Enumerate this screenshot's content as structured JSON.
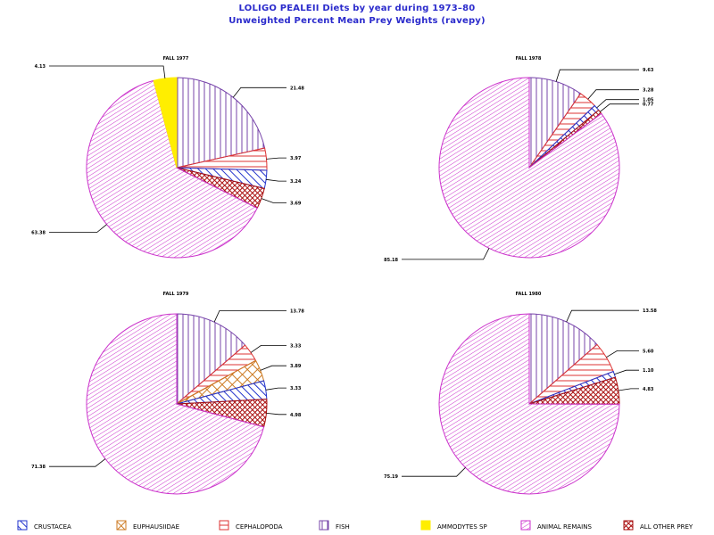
{
  "title": "LOLIGO PEALEII Diets by year during 1973–80",
  "subtitle": "Unweighted Percent Mean Prey Weights (ravepy)",
  "colors": {
    "title": "#2b2bcc",
    "crustacea": "#2233cc",
    "euphausiidae": "#cc7a22",
    "cephalopoda": "#dd3333",
    "fish": "#7744aa",
    "ammodytes": "#ffee00",
    "animal_remains": "#cc33cc",
    "other_prey": "#aa1111"
  },
  "legend": [
    {
      "key": "crustacea",
      "label": "CRUSTACEA",
      "pattern": "crustacea-hatch"
    },
    {
      "key": "euphausiidae",
      "label": "EUPHAUSIIDAE",
      "pattern": "euphausiidae-hatch"
    },
    {
      "key": "cephalopoda",
      "label": "CEPHALOPODA",
      "pattern": "cephalopoda-hatch"
    },
    {
      "key": "fish",
      "label": "FISH",
      "pattern": "fish-hatch"
    },
    {
      "key": "ammodytes",
      "label": "AMMODYTES SP",
      "pattern": "ammodytes-fill"
    },
    {
      "key": "animal_remains",
      "label": "ANIMAL REMAINS",
      "pattern": "animal-remains-hatch"
    },
    {
      "key": "other_prey",
      "label": "ALL OTHER PREY",
      "pattern": "other-prey-hatch"
    }
  ],
  "chart_data": [
    {
      "type": "pie",
      "title": "FALL 1977",
      "slices": [
        {
          "category": "fish",
          "value": 21.48,
          "label": "21.48"
        },
        {
          "category": "cephalopoda",
          "value": 3.97,
          "label": "3.97"
        },
        {
          "category": "crustacea",
          "value": 3.24,
          "label": "3.24"
        },
        {
          "category": "other_prey",
          "value": 3.69,
          "label": "3.69"
        },
        {
          "category": "animal_remains",
          "value": 63.38,
          "label": "63.38"
        },
        {
          "category": "ammodytes",
          "value": 4.13,
          "label": "4.13"
        }
      ]
    },
    {
      "type": "pie",
      "title": "FALL 1978",
      "slices": [
        {
          "category": "fish",
          "value": 9.63,
          "label": "9.63"
        },
        {
          "category": "cephalopoda",
          "value": 3.28,
          "label": "3.28"
        },
        {
          "category": "crustacea",
          "value": 1.05,
          "label": "1.05"
        },
        {
          "category": "other_prey",
          "value": 0.77,
          "label": "0.77"
        },
        {
          "category": "animal_remains",
          "value": 85.18,
          "label": "85.18"
        }
      ]
    },
    {
      "type": "pie",
      "title": "FALL 1979",
      "slices": [
        {
          "category": "fish",
          "value": 13.78,
          "label": "13.78"
        },
        {
          "category": "cephalopoda",
          "value": 3.33,
          "label": "3.33"
        },
        {
          "category": "euphausiidae",
          "value": 3.89,
          "label": "3.89"
        },
        {
          "category": "crustacea",
          "value": 3.33,
          "label": "3.33"
        },
        {
          "category": "other_prey",
          "value": 4.98,
          "label": "4.98"
        },
        {
          "category": "animal_remains",
          "value": 71.38,
          "label": "71.38"
        }
      ]
    },
    {
      "type": "pie",
      "title": "FALL 1980",
      "slices": [
        {
          "category": "fish",
          "value": 13.58,
          "label": "13.58"
        },
        {
          "category": "cephalopoda",
          "value": 5.6,
          "label": "5.60"
        },
        {
          "category": "crustacea",
          "value": 1.1,
          "label": "1.10"
        },
        {
          "category": "other_prey",
          "value": 4.83,
          "label": "4.83"
        },
        {
          "category": "animal_remains",
          "value": 75.19,
          "label": "75.19"
        }
      ]
    }
  ]
}
